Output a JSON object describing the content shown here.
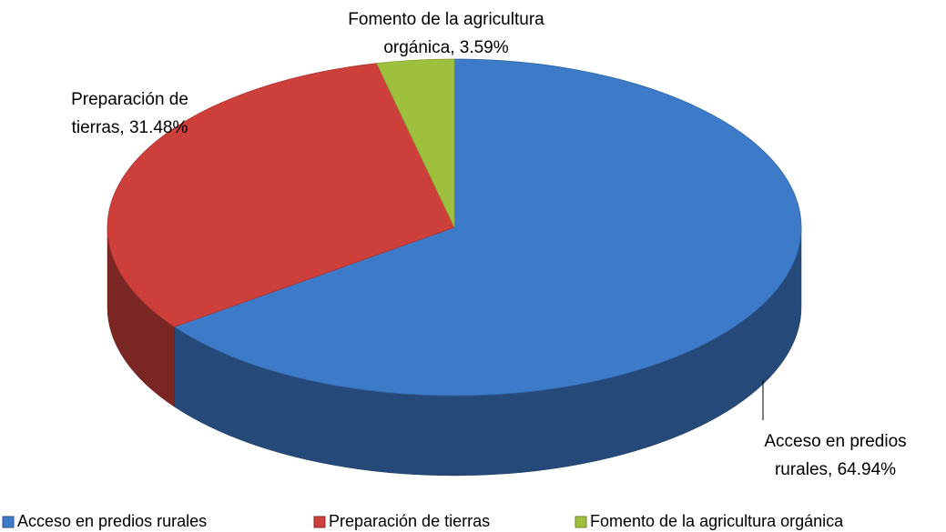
{
  "chart_data": {
    "type": "pie",
    "categories": [
      "Acceso en predios rurales",
      "Preparación de tierras",
      "Fomento de la agricultura orgánica"
    ],
    "values": [
      64.94,
      31.48,
      3.59
    ],
    "value_labels": [
      "Acceso en predios rurales, 64.94%",
      "Preparación de tierras, 31.48%",
      "Fomento de la agricultura orgánica, 3.59%"
    ],
    "colors": [
      "#3d7ac8",
      "#cc3f3b",
      "#9fbf3f"
    ],
    "legend": "bottom"
  }
}
